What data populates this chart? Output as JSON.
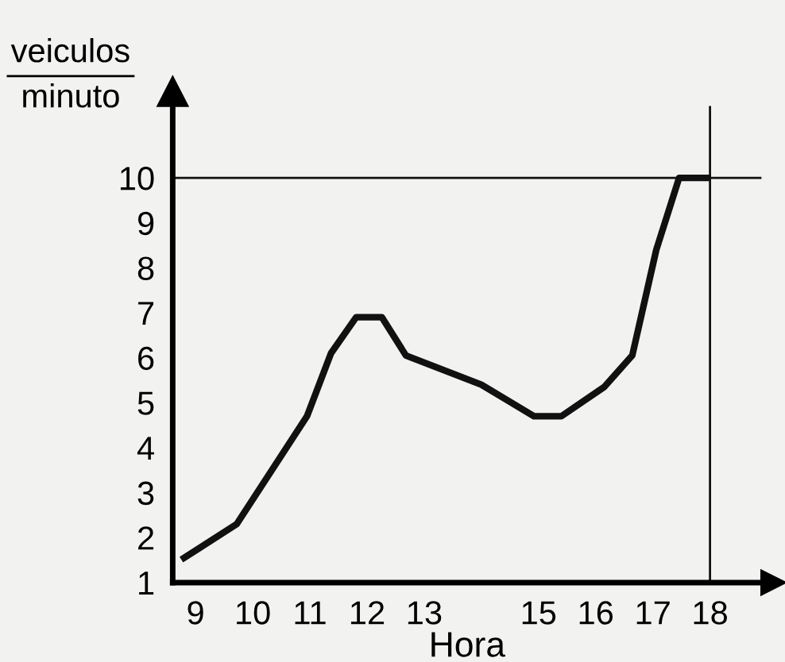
{
  "chart_data": {
    "type": "line",
    "xlabel": "Hora",
    "ylabel": "veiculos minuto",
    "x": [
      8.8,
      9.72,
      10.95,
      11.37,
      11.81,
      12.26,
      12.68,
      14.0,
      14.92,
      15.4,
      16.15,
      16.64,
      17.06,
      17.46,
      17.95
    ],
    "series": [
      {
        "color": "#111111",
        "values": [
          1.55,
          2.3,
          4.7,
          6.1,
          6.9,
          6.9,
          6.05,
          5.4,
          4.7,
          4.7,
          5.35,
          6.05,
          8.4,
          10,
          10
        ]
      }
    ],
    "xlim": [
      8.6,
      18.9
    ],
    "ylim": [
      1,
      11.6
    ],
    "xticks": [
      9,
      10,
      11,
      12,
      13,
      15,
      16,
      17,
      18
    ],
    "yticks": [
      1,
      2,
      3,
      4,
      5,
      6,
      7,
      8,
      9,
      10
    ],
    "ref_lines": [
      {
        "axis": "y",
        "value": 10,
        "color": "#111111"
      },
      {
        "axis": "x",
        "value": 18,
        "color": "#111111"
      }
    ],
    "grid": false,
    "legend": false,
    "marker": "none",
    "line_style": "solid"
  }
}
